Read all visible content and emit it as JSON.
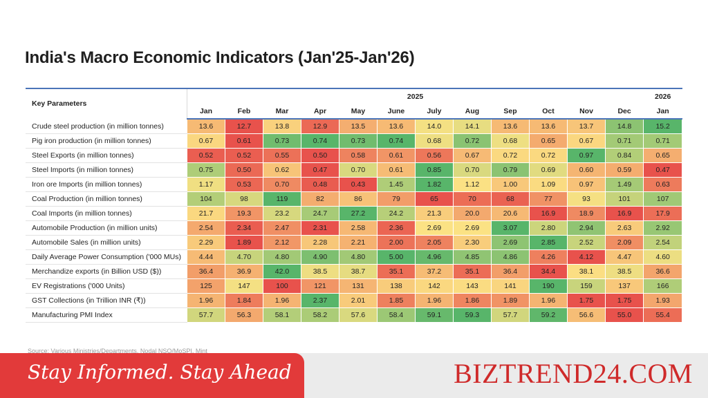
{
  "title": "India's Macro Economic Indicators (Jan'25-Jan'26)",
  "footnote": "Source: Various Ministries/Departments, Nodal NSO/MoSPI, Mint",
  "banner": {
    "tagline": "Stay Informed. Stay Ahead",
    "brand": "BIZTREND24.COM"
  },
  "colors": {
    "accent_rule": "#4a74b8",
    "banner_red": "#e23a3a",
    "brand_red": "#cf2a2a",
    "heat_low": "#e8524c",
    "heat_mid": "#fbe284",
    "heat_high": "#58b56a"
  },
  "chart_data": {
    "type": "table",
    "corner_label": "Key Parameters",
    "year_groups": [
      {
        "label": "2025",
        "span": 12
      },
      {
        "label": "2026",
        "span": 1
      }
    ],
    "columns": [
      "Jan",
      "Feb",
      "Mar",
      "Apr",
      "May",
      "June",
      "July",
      "Aug",
      "Sep",
      "Oct",
      "Nov",
      "Dec",
      "Jan"
    ],
    "rows": [
      {
        "label": "Crude steel production (in million tonnes)",
        "values": [
          "13.6",
          "12.7",
          "13.8",
          "12.9",
          "13.5",
          "13.6",
          "14.0",
          "14.1",
          "13.6",
          "13.6",
          "13.7",
          "14.8",
          "15.2"
        ]
      },
      {
        "label": "Pig iron production (in million tonnes)",
        "values": [
          "0.67",
          "0.61",
          "0.73",
          "0.74",
          "0.73",
          "0.74",
          "0.68",
          "0.72",
          "0.68",
          "0.65",
          "0.67",
          "0.71",
          "0.71"
        ]
      },
      {
        "label": "Steel Exports (in million tonnes)",
        "values": [
          "0.52",
          "0.52",
          "0.55",
          "0.50",
          "0.58",
          "0.61",
          "0.56",
          "0.67",
          "0.72",
          "0.72",
          "0.97",
          "0.84",
          "0.65"
        ]
      },
      {
        "label": "Steel Imports (in million tonnes)",
        "values": [
          "0.75",
          "0.50",
          "0.62",
          "0.47",
          "0.70",
          "0.61",
          "0.85",
          "0.70",
          "0.79",
          "0.69",
          "0.60",
          "0.59",
          "0.47"
        ]
      },
      {
        "label": "Iron ore Imports (in million tonnes)",
        "values": [
          "1.17",
          "0.53",
          "0.70",
          "0.48",
          "0.43",
          "1.45",
          "1.82",
          "1.12",
          "1.00",
          "1.09",
          "0.97",
          "1.49",
          "0.63"
        ]
      },
      {
        "label": "Coal Production (in million tonnes)",
        "values": [
          "104",
          "98",
          "119",
          "82",
          "86",
          "79",
          "65",
          "70",
          "68",
          "77",
          "93",
          "101",
          "107"
        ]
      },
      {
        "label": "Coal Imports (in million tonnes)",
        "values": [
          "21.7",
          "19.3",
          "23.2",
          "24.7",
          "27.2",
          "24.2",
          "21.3",
          "20.0",
          "20.6",
          "16.9",
          "18.9",
          "16.9",
          "17.9"
        ]
      },
      {
        "label": "Automobile Production (in million units)",
        "values": [
          "2.54",
          "2.34",
          "2.47",
          "2.31",
          "2.58",
          "2.36",
          "2.69",
          "2.69",
          "3.07",
          "2.80",
          "2.94",
          "2.63",
          "2.92"
        ]
      },
      {
        "label": "Automobile Sales (in million units)",
        "values": [
          "2.29",
          "1.89",
          "2.12",
          "2.28",
          "2.21",
          "2.00",
          "2.05",
          "2.30",
          "2.69",
          "2.85",
          "2.52",
          "2.09",
          "2.54"
        ]
      },
      {
        "label": "Daily Average Power Consumption ('000 MUs)",
        "values": [
          "4.44",
          "4.70",
          "4.80",
          "4.90",
          "4.80",
          "5.00",
          "4.96",
          "4.85",
          "4.86",
          "4.26",
          "4.12",
          "4.47",
          "4.60"
        ]
      },
      {
        "label": "Merchandize exports (in Billion USD ($))",
        "values": [
          "36.4",
          "36.9",
          "42.0",
          "38.5",
          "38.7",
          "35.1",
          "37.2",
          "35.1",
          "36.4",
          "34.4",
          "38.1",
          "38.5",
          "36.6"
        ]
      },
      {
        "label": "EV Registrations ('000 Units)",
        "values": [
          "125",
          "147",
          "100",
          "121",
          "131",
          "138",
          "142",
          "143",
          "141",
          "190",
          "159",
          "137",
          "166"
        ]
      },
      {
        "label": "GST Collections (in Trillion INR (₹))",
        "values": [
          "1.96",
          "1.84",
          "1.96",
          "2.37",
          "2.01",
          "1.85",
          "1.96",
          "1.86",
          "1.89",
          "1.96",
          "1.75",
          "1.75",
          "1.93"
        ]
      },
      {
        "label": "Manufacturing PMI Index",
        "values": [
          "57.7",
          "56.3",
          "58.1",
          "58.2",
          "57.6",
          "58.4",
          "59.1",
          "59.3",
          "57.7",
          "59.2",
          "56.6",
          "55.0",
          "55.4"
        ]
      }
    ]
  }
}
